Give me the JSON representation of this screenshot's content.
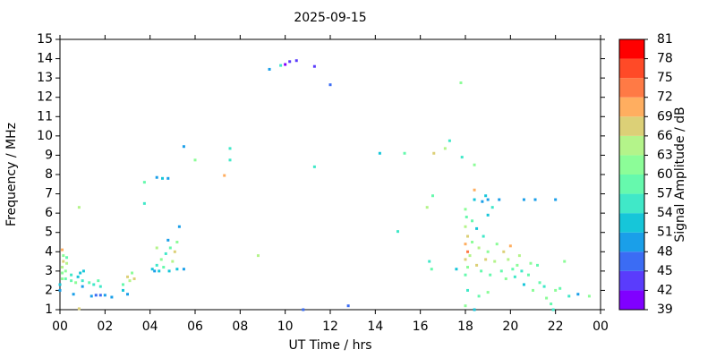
{
  "chart_data": {
    "type": "scatter",
    "title": "2025-09-15",
    "xlabel": "UT Time / hrs",
    "ylabel": "Frequency / MHz",
    "xlim": [
      0,
      24
    ],
    "ylim": [
      1,
      15
    ],
    "xticks": [
      {
        "value": 0,
        "label": "00"
      },
      {
        "value": 2,
        "label": "02"
      },
      {
        "value": 4,
        "label": "04"
      },
      {
        "value": 6,
        "label": "06"
      },
      {
        "value": 8,
        "label": "08"
      },
      10,
      12,
      14,
      16,
      18,
      20,
      22,
      {
        "value": 24,
        "label": "00"
      }
    ],
    "yticks": [
      1,
      2,
      3,
      4,
      5,
      6,
      7,
      8,
      9,
      10,
      11,
      12,
      13,
      14,
      15
    ],
    "x": [
      0,
      0,
      0.1,
      0.1,
      0.1,
      0.15,
      0.15,
      0.1,
      0.25,
      0.25,
      0.3,
      0.3,
      0.5,
      0.5,
      0.7,
      0.8,
      0.9,
      1.0,
      1.0,
      1.05,
      0.85,
      0.6,
      0.85,
      1.3,
      1.5,
      1.7,
      1.8,
      1.4,
      1.6,
      1.8,
      2.0,
      2.3,
      2.8,
      2.8,
      3.0,
      3.1,
      3.2,
      3.0,
      3.3,
      3.75,
      3.75,
      4.1,
      4.2,
      4.3,
      4.4,
      4.5,
      4.6,
      4.7,
      4.8,
      4.85,
      4.9,
      5.0,
      5.1,
      5.2,
      5.3,
      5.2,
      5.5,
      4.3,
      4.3,
      4.55,
      4.8,
      5.5,
      6.0,
      7.3,
      7.55,
      7.55,
      8.8,
      9.3,
      9.8,
      10.0,
      10.2,
      10.5,
      11.3,
      12.0,
      11.3,
      10.8,
      12.8,
      14.2,
      15.0,
      15.3,
      16.3,
      16.4,
      16.55,
      16.6,
      16.5,
      17.1,
      17.3,
      17.6,
      17.8,
      17.85,
      18.4,
      18.0,
      18.05,
      18.0,
      18.1,
      18.0,
      18.1,
      18.0,
      18.1,
      18.0,
      18.2,
      18.3,
      18.3,
      18.4,
      18.4,
      18.5,
      18.5,
      18.6,
      18.7,
      18.75,
      18.8,
      18.9,
      19.0,
      19.0,
      19.1,
      19.2,
      19.3,
      19.4,
      19.5,
      19.6,
      19.7,
      19.8,
      19.9,
      20.0,
      20.1,
      20.2,
      20.3,
      20.4,
      20.5,
      18.0,
      18.1,
      18.4,
      18.6,
      19.0,
      19.0,
      18.9,
      20.6,
      21.1,
      22.0,
      20.6,
      20.8,
      20.9,
      21.0,
      21.2,
      21.3,
      21.5,
      21.6,
      21.8,
      21.9,
      22.0,
      22.2,
      22.4,
      22.6,
      23.0,
      23.5
    ],
    "y": [
      2.0,
      2.3,
      2.6,
      2.9,
      3.2,
      3.5,
      3.8,
      4.1,
      2.6,
      3.0,
      3.4,
      3.7,
      2.5,
      2.8,
      2.4,
      2.7,
      2.9,
      2.5,
      2.2,
      3.0,
      6.3,
      1.8,
      1.05,
      2.4,
      2.3,
      2.5,
      2.2,
      1.7,
      1.75,
      1.75,
      1.75,
      1.65,
      2.3,
      2.0,
      2.7,
      2.5,
      2.9,
      1.8,
      2.6,
      7.6,
      6.5,
      3.1,
      3.0,
      3.3,
      3.0,
      3.6,
      3.2,
      3.9,
      4.6,
      3.0,
      4.2,
      3.5,
      4.0,
      4.5,
      5.3,
      3.1,
      3.1,
      4.2,
      7.85,
      7.8,
      7.8,
      9.45,
      8.75,
      7.95,
      9.35,
      8.75,
      3.8,
      13.45,
      13.65,
      13.7,
      13.85,
      13.9,
      13.6,
      12.65,
      8.4,
      1.0,
      1.2,
      9.1,
      5.05,
      9.1,
      6.3,
      3.5,
      6.9,
      9.1,
      3.1,
      9.35,
      9.75,
      3.1,
      12.75,
      8.9,
      8.5,
      6.2,
      5.8,
      5.3,
      4.8,
      4.4,
      4.0,
      3.6,
      3.2,
      2.8,
      3.8,
      4.5,
      5.6,
      6.7,
      7.2,
      3.3,
      5.2,
      4.2,
      3.0,
      6.6,
      4.8,
      3.6,
      6.7,
      4.0,
      2.8,
      6.3,
      3.5,
      4.4,
      6.7,
      3.0,
      4.0,
      2.6,
      3.6,
      4.3,
      3.1,
      2.7,
      3.3,
      3.8,
      3.0,
      1.2,
      2.0,
      1.0,
      1.7,
      1.9,
      5.9,
      6.9,
      6.7,
      6.7,
      6.7,
      2.3,
      2.8,
      3.4,
      2.0,
      3.3,
      2.4,
      2.2,
      1.6,
      1.3,
      1.0,
      2.0,
      2.1,
      3.5,
      1.7,
      1.8,
      1.7
    ],
    "values": [
      49,
      51,
      60,
      62,
      63,
      66,
      60,
      69,
      57,
      60,
      63,
      57,
      57,
      55,
      60,
      53,
      51,
      55,
      50,
      52,
      63,
      48,
      66,
      57,
      55,
      57,
      54,
      48,
      47,
      47,
      48,
      49,
      57,
      53,
      66,
      63,
      60,
      50,
      66,
      57,
      55,
      52,
      50,
      55,
      52,
      60,
      57,
      55,
      50,
      51,
      57,
      63,
      66,
      60,
      50,
      52,
      50,
      63,
      50,
      52,
      49,
      50,
      60,
      70,
      55,
      54,
      64,
      50,
      56,
      41,
      43,
      42,
      44,
      47,
      55,
      45,
      47,
      52,
      54,
      57,
      63,
      55,
      57,
      66,
      57,
      63,
      56,
      53,
      60,
      55,
      60,
      60,
      57,
      63,
      66,
      69,
      72,
      66,
      60,
      57,
      63,
      60,
      57,
      52,
      70,
      66,
      52,
      63,
      57,
      50,
      55,
      66,
      50,
      60,
      57,
      55,
      63,
      60,
      50,
      57,
      66,
      60,
      63,
      69,
      57,
      55,
      60,
      63,
      55,
      60,
      55,
      52,
      57,
      60,
      52,
      52,
      50,
      50,
      49,
      52,
      57,
      60,
      60,
      57,
      57,
      55,
      60,
      57,
      55,
      60,
      57,
      60,
      55,
      50,
      60
    ],
    "colorbar": {
      "label": "Signal Amplitude / dB",
      "ticks": [
        39,
        42,
        45,
        48,
        51,
        54,
        57,
        60,
        63,
        66,
        69,
        72,
        75,
        78,
        81
      ],
      "colors": [
        "#8000ff",
        "#5a3cfc",
        "#3b6cf4",
        "#1a9fe9",
        "#16c6d9",
        "#40e8c8",
        "#66f9ad",
        "#8cfd98",
        "#b4f48a",
        "#dcd077",
        "#ffae60",
        "#ff7a45",
        "#ff4a27",
        "#ff0000"
      ]
    }
  }
}
